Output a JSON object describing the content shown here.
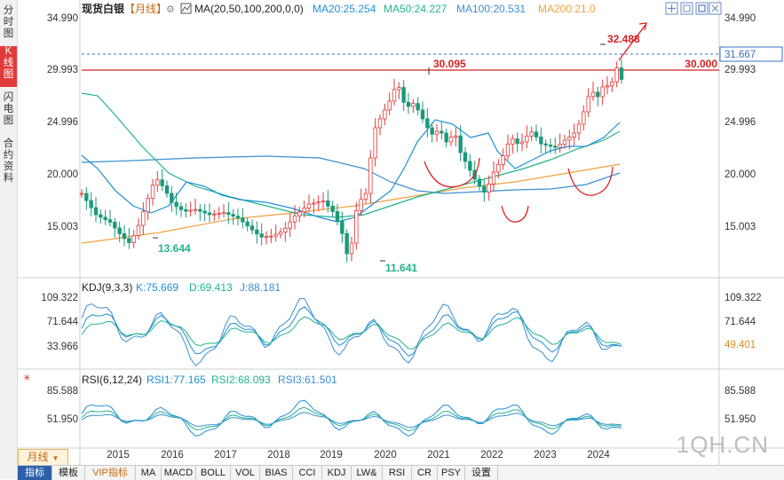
{
  "side_tabs": [
    {
      "label": "分时图",
      "active": false
    },
    {
      "label": "K线图",
      "active": true
    },
    {
      "label": "闪电图",
      "active": false
    },
    {
      "label": "合约资料",
      "active": false
    }
  ],
  "header": {
    "title": "现货白银",
    "period_tag": "【月线】",
    "ma_label": "MA(20,50,100,200,0,0)",
    "ma_values": [
      {
        "text": "MA20:25.254",
        "color": "#1f8fd6"
      },
      {
        "text": "MA50:24.227",
        "color": "#21b38f"
      },
      {
        "text": "MA100:20.531",
        "color": "#3a8fd0"
      },
      {
        "text": "MA200:21.0",
        "color": "#f0a040"
      }
    ],
    "window_icons": [
      "move-icon",
      "restore-icon",
      "close-icon"
    ]
  },
  "right_axis": {
    "price_ticks": [
      "34.990",
      "29.993",
      "24.996",
      "20.000",
      "15.003"
    ],
    "kdj_ticks": [
      "109.322",
      "71.644",
      "33.966"
    ],
    "kdj_last": "49.401",
    "rsi_ticks": [
      "85.588",
      "51.950"
    ]
  },
  "left_axis": {
    "price_ticks": [
      "34.990",
      "29.993",
      "24.996",
      "20.000",
      "15.003"
    ],
    "kdj_ticks": [
      "109.322",
      "71.644",
      "33.966"
    ],
    "rsi_ticks": [
      "85.588",
      "51.950"
    ]
  },
  "price_annotations": {
    "high_2020": "30.095",
    "low_2016": "13.644",
    "low_2020": "11.641",
    "high_2024": "32.488",
    "horizontal_line_label": "30.000",
    "current_price_label": "31.667"
  },
  "kdj": {
    "title": "KDJ(9,3,3)",
    "k": "K:75.669",
    "d": "D:69.413",
    "j": "J:88.181"
  },
  "rsi": {
    "title": "RSI(6,12,24)",
    "r1": "RSI1:77.165",
    "r2": "RSI2:68.093",
    "r3": "RSI3:61.501"
  },
  "x_axis_years": [
    "2015",
    "2016",
    "2017",
    "2018",
    "2019",
    "2020",
    "2021",
    "2022",
    "2023",
    "2024"
  ],
  "period_button": "月线",
  "watermark": "1QH.CN",
  "bottom_tabs": [
    "指标",
    "模板",
    "VIP指标",
    "MA",
    "MACD",
    "BOLL",
    "VOL",
    "BIAS",
    "CCI",
    "KDJ",
    "LW&",
    "RSI",
    "CR",
    "PSY",
    "设置"
  ],
  "colors": {
    "up": "#e23a3a",
    "down": "#1a9a7a",
    "ma20": "#1f8fd6",
    "ma50": "#21b38f",
    "ma100": "#3a8fd0",
    "ma200": "#f0a040"
  },
  "chart_data": {
    "type": "candlestick",
    "title": "现货白银",
    "period": "monthly",
    "ylim": [
      11.0,
      36.0
    ],
    "x_years": [
      2015,
      2016,
      2017,
      2018,
      2019,
      2020,
      2021,
      2022,
      2023,
      2024
    ],
    "key_points": [
      {
        "label": "low 2016",
        "value": 13.644
      },
      {
        "label": "low 2020",
        "value": 11.641
      },
      {
        "label": "high 2020",
        "value": 30.095
      },
      {
        "label": "high 2024",
        "value": 32.488
      }
    ],
    "current": 31.667,
    "resistance": 30.0,
    "ma": {
      "MA20": 25.254,
      "MA50": 24.227,
      "MA100": 20.531,
      "MA200": 21.0
    },
    "kdj": {
      "K": 75.669,
      "D": 69.413,
      "J": 88.181
    },
    "rsi": {
      "RSI1": 77.165,
      "RSI2": 68.093,
      "RSI3": 61.501
    }
  }
}
